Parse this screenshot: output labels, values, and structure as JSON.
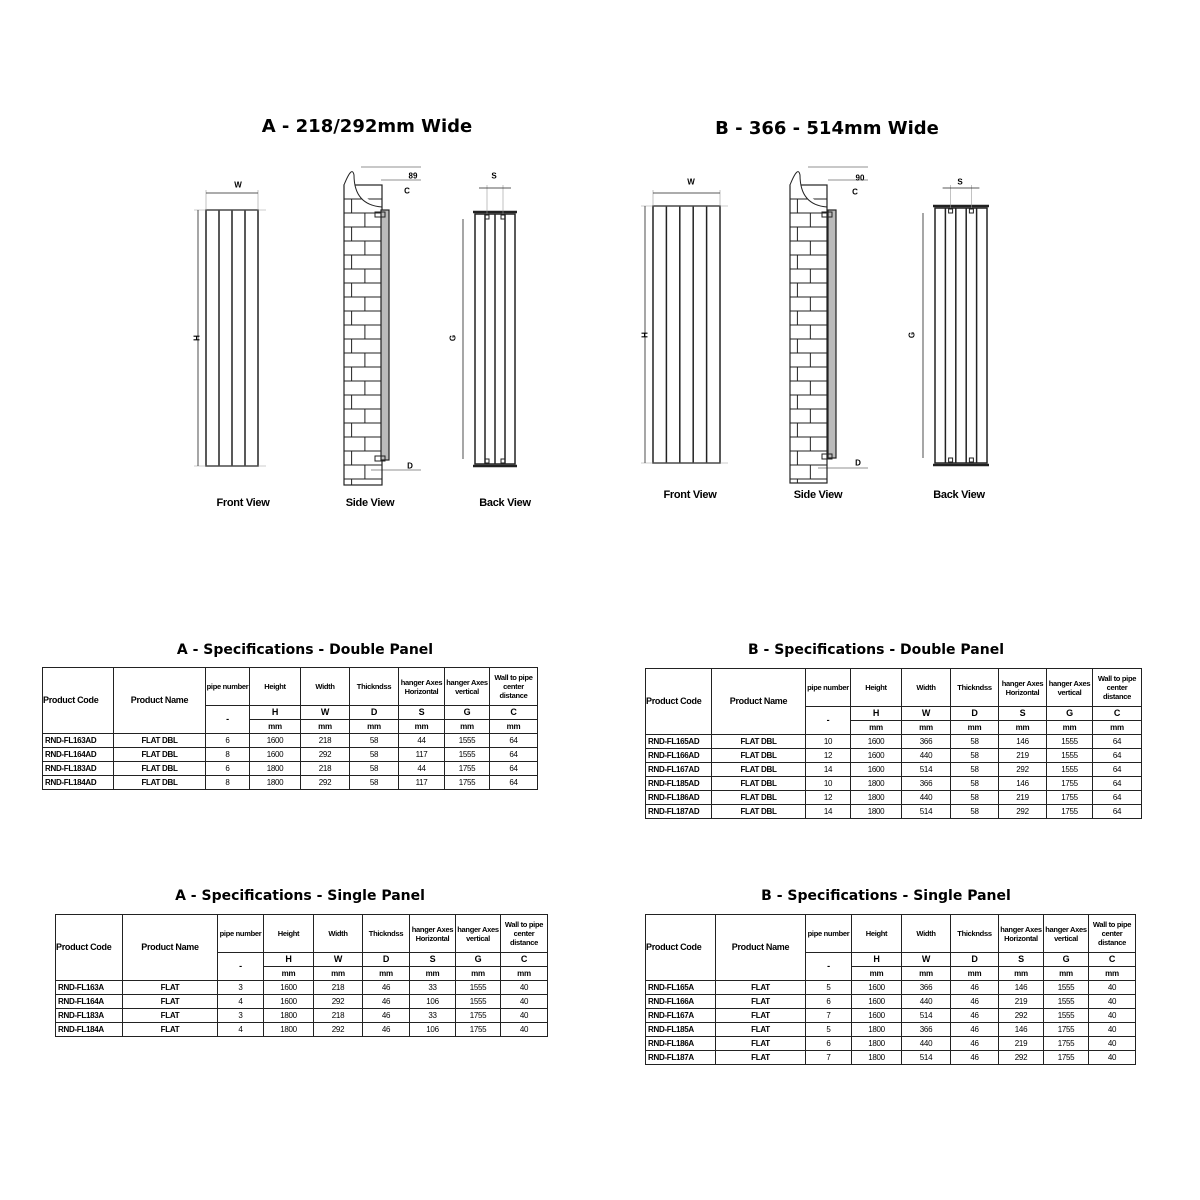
{
  "drawings": {
    "A": {
      "title": "A - 218/292mm Wide",
      "front_label": "Front View",
      "side_label": "Side View",
      "back_label": "Back View",
      "w": "W",
      "h": "H",
      "side_offset": "89",
      "c": "C",
      "d": "D",
      "s": "S",
      "g": "G"
    },
    "B": {
      "title": "B - 366 - 514mm Wide",
      "front_label": "Front View",
      "side_label": "Side View",
      "back_label": "Back View",
      "w": "W",
      "h": "H",
      "side_offset": "90",
      "c": "C",
      "d": "D",
      "s": "S",
      "g": "G"
    }
  },
  "headers": {
    "product_code": "Product Code",
    "product_name": "Product Name",
    "cols": [
      "pipe number",
      "Height",
      "Width",
      "Thickndss",
      "hanger Axes Horizontal",
      "hanger Axes vertical",
      "Wall to pipe center distance"
    ],
    "symbols": [
      "-",
      "H",
      "W",
      "D",
      "S",
      "G",
      "C"
    ],
    "units": [
      "mm",
      "mm",
      "mm",
      "mm",
      "mm",
      "mm"
    ]
  },
  "tables": [
    {
      "id": "a-double",
      "title": "A - Specifications - Double Panel",
      "rows": [
        [
          "RND-FL163AD",
          "FLAT DBL",
          "6",
          "1600",
          "218",
          "58",
          "44",
          "1555",
          "64"
        ],
        [
          "RND-FL164AD",
          "FLAT DBL",
          "8",
          "1600",
          "292",
          "58",
          "117",
          "1555",
          "64"
        ],
        [
          "RND-FL183AD",
          "FLAT DBL",
          "6",
          "1800",
          "218",
          "58",
          "44",
          "1755",
          "64"
        ],
        [
          "RND-FL184AD",
          "FLAT DBL",
          "8",
          "1800",
          "292",
          "58",
          "117",
          "1755",
          "64"
        ]
      ]
    },
    {
      "id": "b-double",
      "title": "B - Specifications - Double Panel",
      "rows": [
        [
          "RND-FL165AD",
          "FLAT DBL",
          "10",
          "1600",
          "366",
          "58",
          "146",
          "1555",
          "64"
        ],
        [
          "RND-FL166AD",
          "FLAT DBL",
          "12",
          "1600",
          "440",
          "58",
          "219",
          "1555",
          "64"
        ],
        [
          "RND-FL167AD",
          "FLAT DBL",
          "14",
          "1600",
          "514",
          "58",
          "292",
          "1555",
          "64"
        ],
        [
          "RND-FL185AD",
          "FLAT DBL",
          "10",
          "1800",
          "366",
          "58",
          "146",
          "1755",
          "64"
        ],
        [
          "RND-FL186AD",
          "FLAT DBL",
          "12",
          "1800",
          "440",
          "58",
          "219",
          "1755",
          "64"
        ],
        [
          "RND-FL187AD",
          "FLAT DBL",
          "14",
          "1800",
          "514",
          "58",
          "292",
          "1755",
          "64"
        ]
      ]
    },
    {
      "id": "a-single",
      "title": "A - Specifications - Single Panel",
      "rows": [
        [
          "RND-FL163A",
          "FLAT",
          "3",
          "1600",
          "218",
          "46",
          "33",
          "1555",
          "40"
        ],
        [
          "RND-FL164A",
          "FLAT",
          "4",
          "1600",
          "292",
          "46",
          "106",
          "1555",
          "40"
        ],
        [
          "RND-FL183A",
          "FLAT",
          "3",
          "1800",
          "218",
          "46",
          "33",
          "1755",
          "40"
        ],
        [
          "RND-FL184A",
          "FLAT",
          "4",
          "1800",
          "292",
          "46",
          "106",
          "1755",
          "40"
        ]
      ]
    },
    {
      "id": "b-single",
      "title": "B - Specifications - Single Panel",
      "rows": [
        [
          "RND-FL165A",
          "FLAT",
          "5",
          "1600",
          "366",
          "46",
          "146",
          "1555",
          "40"
        ],
        [
          "RND-FL166A",
          "FLAT",
          "6",
          "1600",
          "440",
          "46",
          "219",
          "1555",
          "40"
        ],
        [
          "RND-FL167A",
          "FLAT",
          "7",
          "1600",
          "514",
          "46",
          "292",
          "1555",
          "40"
        ],
        [
          "RND-FL185A",
          "FLAT",
          "5",
          "1800",
          "366",
          "46",
          "146",
          "1755",
          "40"
        ],
        [
          "RND-FL186A",
          "FLAT",
          "6",
          "1800",
          "440",
          "46",
          "219",
          "1755",
          "40"
        ],
        [
          "RND-FL187A",
          "FLAT",
          "7",
          "1800",
          "514",
          "46",
          "292",
          "1755",
          "40"
        ]
      ]
    }
  ]
}
